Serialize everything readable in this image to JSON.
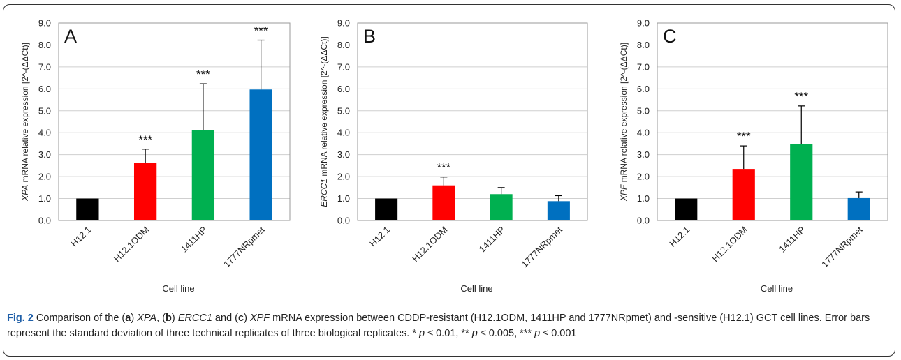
{
  "chart_data": [
    {
      "type": "bar",
      "panel_label": "A",
      "categories": [
        "H12.1",
        "H12.1ODM",
        "1411HP",
        "1777NRpmet"
      ],
      "values": [
        1.0,
        2.63,
        4.13,
        5.97
      ],
      "errors": [
        0.0,
        0.62,
        2.1,
        2.25
      ],
      "significance": [
        "",
        "***",
        "***",
        "***"
      ],
      "colors": [
        "#000000",
        "#ff0000",
        "#00b050",
        "#0070c0"
      ],
      "ylabel_gene": "XPA",
      "ylabel_rest": " mRNA relative expression [2^-(ΔΔCt)]",
      "xlabel": "Cell line",
      "ylim": [
        0,
        9
      ],
      "yticks": [
        "0.0",
        "1.0",
        "2.0",
        "3.0",
        "4.0",
        "5.0",
        "6.0",
        "7.0",
        "8.0",
        "9.0"
      ],
      "grid": true
    },
    {
      "type": "bar",
      "panel_label": "B",
      "categories": [
        "H12.1",
        "H12.1ODM",
        "1411HP",
        "1777NRpmet"
      ],
      "values": [
        1.0,
        1.6,
        1.2,
        0.88
      ],
      "errors": [
        0.0,
        0.38,
        0.3,
        0.25
      ],
      "significance": [
        "",
        "***",
        "",
        ""
      ],
      "colors": [
        "#000000",
        "#ff0000",
        "#00b050",
        "#0070c0"
      ],
      "ylabel_gene": "ERCC1",
      "ylabel_rest": " mRNA relative expression [2^-(ΔΔCt)]",
      "xlabel": "Cell line",
      "ylim": [
        0,
        9
      ],
      "yticks": [
        "0.0",
        "1.0",
        "2.0",
        "3.0",
        "4.0",
        "5.0",
        "6.0",
        "7.0",
        "8.0",
        "9.0"
      ],
      "grid": true
    },
    {
      "type": "bar",
      "panel_label": "C",
      "categories": [
        "H12.1",
        "H12.1ODM",
        "1411HP",
        "1777NRpmet"
      ],
      "values": [
        1.0,
        2.35,
        3.47,
        1.02
      ],
      "errors": [
        0.0,
        1.05,
        1.75,
        0.28
      ],
      "significance": [
        "",
        "***",
        "***",
        ""
      ],
      "colors": [
        "#000000",
        "#ff0000",
        "#00b050",
        "#0070c0"
      ],
      "ylabel_gene": "XPF",
      "ylabel_rest": " mRNA relative expression [2^-(ΔΔCt)]",
      "xlabel": "Cell line",
      "ylim": [
        0,
        9
      ],
      "yticks": [
        "0.0",
        "1.0",
        "2.0",
        "3.0",
        "4.0",
        "5.0",
        "6.0",
        "7.0",
        "8.0",
        "9.0"
      ],
      "grid": true
    }
  ],
  "caption": {
    "label": "Fig. 2",
    "t1": " Comparison of the (",
    "a": "a",
    "t2": ") ",
    "gene_a": "XPA",
    "t3": ", (",
    "b": "b",
    "t4": ") ",
    "gene_b": "ERCC1",
    "t5": " and (",
    "c": "c",
    "t6": ") ",
    "gene_c": "XPF",
    "t7": " mRNA expression between CDDP-resistant (H12.1ODM, 1411HP and 1777NRpmet) and -sensitive (H12.1) GCT cell lines. Error bars represent the standard deviation of three technical replicates of three biological replicates. * ",
    "p1": "p",
    "t8": " ≤ 0.01, ** ",
    "p2": "p",
    "t9": " ≤ 0.005, *** ",
    "p3": "p",
    "t10": " ≤ 0.001"
  }
}
